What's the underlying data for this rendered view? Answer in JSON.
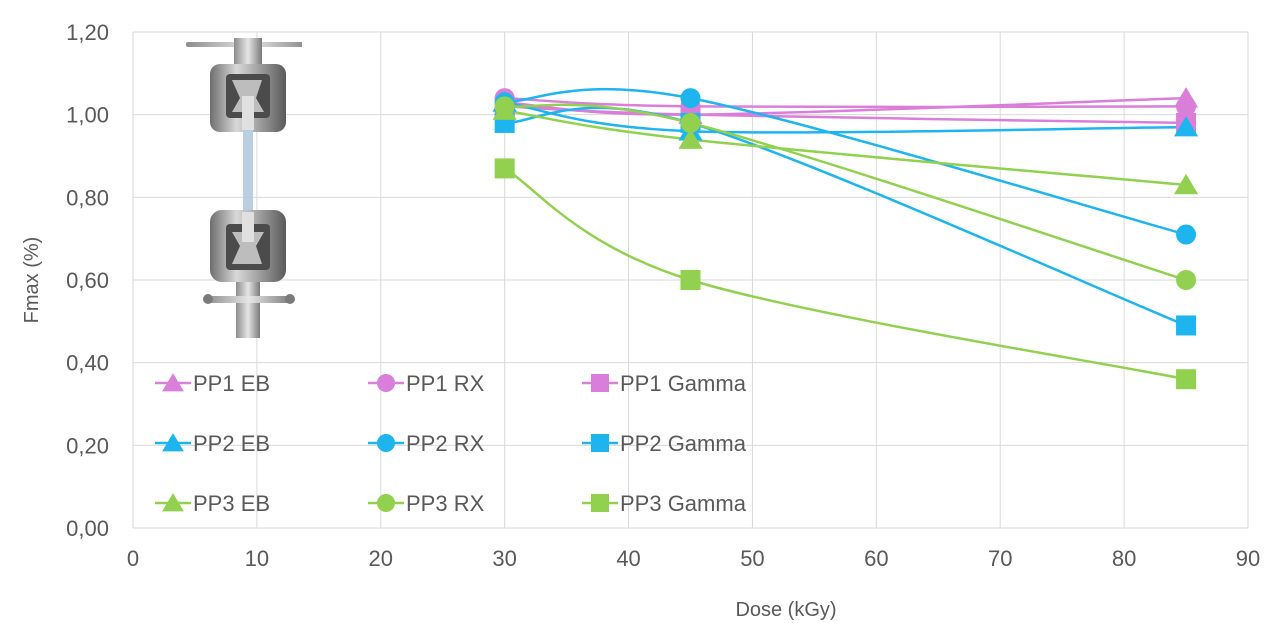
{
  "chart_data": {
    "type": "line",
    "title": "",
    "xlabel": "Dose (kGy)",
    "ylabel": "Fmax (%)",
    "xlim": [
      0,
      90
    ],
    "ylim": [
      0,
      1.2
    ],
    "x_ticks": [
      "0",
      "10",
      "20",
      "30",
      "40",
      "50",
      "60",
      "70",
      "80",
      "90"
    ],
    "y_ticks": [
      "0,00",
      "0,20",
      "0,40",
      "0,60",
      "0,80",
      "1,00",
      "1,20"
    ],
    "grid": "horizontal and vertical",
    "legend_position": "lower-left, inside plot",
    "x": [
      30,
      45,
      85
    ],
    "series": [
      {
        "name": "PP1 EB",
        "marker": "triangle",
        "color": "#d97fd9",
        "values": [
          1.03,
          1.0,
          1.04
        ]
      },
      {
        "name": "PP1 RX",
        "marker": "circle",
        "color": "#d97fd9",
        "values": [
          1.04,
          1.02,
          1.02
        ]
      },
      {
        "name": "PP1 Gamma",
        "marker": "square",
        "color": "#d97fd9",
        "values": [
          1.02,
          1.0,
          0.98
        ]
      },
      {
        "name": "PP2 EB",
        "marker": "triangle",
        "color": "#1eb4ee",
        "values": [
          1.03,
          0.96,
          0.97
        ]
      },
      {
        "name": "PP2 RX",
        "marker": "circle",
        "color": "#1eb4ee",
        "values": [
          1.03,
          1.04,
          0.71
        ]
      },
      {
        "name": "PP2 Gamma",
        "marker": "square",
        "color": "#1eb4ee",
        "values": [
          0.98,
          0.98,
          0.49
        ]
      },
      {
        "name": "PP3 EB",
        "marker": "triangle",
        "color": "#92d050",
        "values": [
          1.01,
          0.94,
          0.83
        ]
      },
      {
        "name": "PP3 RX",
        "marker": "circle",
        "color": "#92d050",
        "values": [
          1.02,
          0.98,
          0.6
        ]
      },
      {
        "name": "PP3 Gamma",
        "marker": "square",
        "color": "#92d050",
        "values": [
          0.87,
          0.6,
          0.36
        ]
      }
    ]
  },
  "photo": {
    "icon": "tensile-test-grips-photo"
  }
}
